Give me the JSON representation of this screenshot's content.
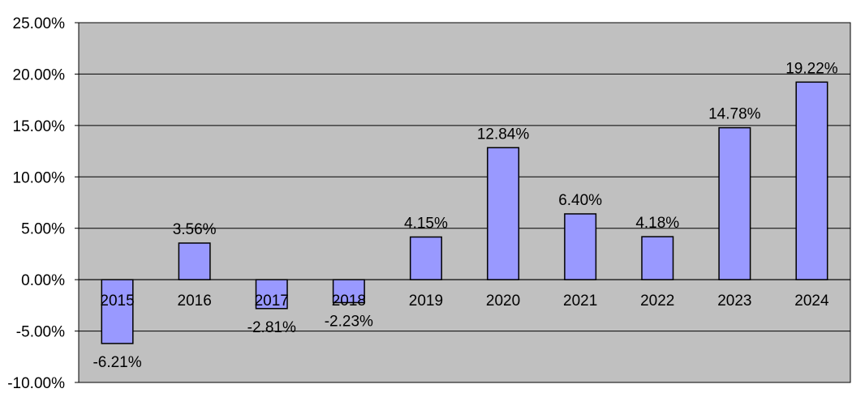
{
  "chart_data": {
    "type": "bar",
    "categories": [
      "2015",
      "2016",
      "2017",
      "2018",
      "2019",
      "2020",
      "2021",
      "2022",
      "2023",
      "2024"
    ],
    "values": [
      -6.21,
      3.56,
      -2.81,
      -2.23,
      4.15,
      12.84,
      6.4,
      4.18,
      14.78,
      19.22
    ],
    "data_labels": [
      "-6.21%",
      "3.56%",
      "-2.81%",
      "-2.23%",
      "4.15%",
      "12.84%",
      "6.40%",
      "4.18%",
      "14.78%",
      "19.22%"
    ],
    "y_ticks": [
      25,
      20,
      15,
      10,
      5,
      0,
      -5,
      -10
    ],
    "y_tick_labels": [
      "25.00%",
      "20.00%",
      "15.00%",
      "10.00%",
      "5.00%",
      "0.00%",
      "-5.00%",
      "-10.00%"
    ],
    "ylim": [
      -10,
      25
    ],
    "grid": true,
    "legend": "none",
    "title": "",
    "xlabel": "",
    "ylabel": "",
    "colors": {
      "plot_background": "#c0c0c0",
      "bar_fill": "#9999ff",
      "bar_stroke": "#000000",
      "gridline": "#000000",
      "text": "#000000"
    }
  }
}
